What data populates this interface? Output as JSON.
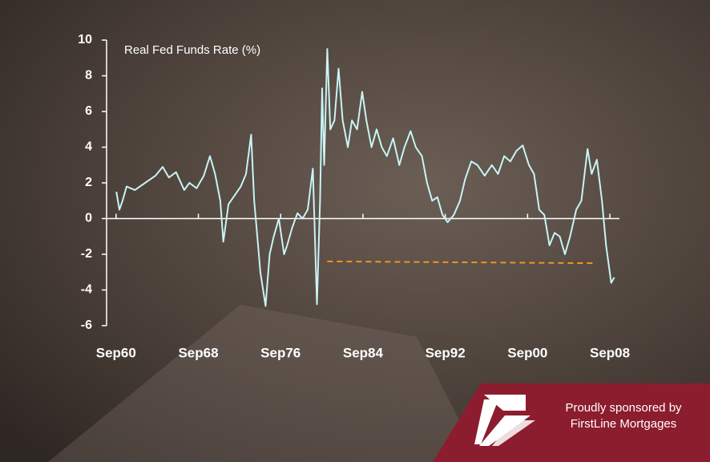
{
  "chart_data": {
    "type": "line",
    "title": "Real Fed Funds Rate (%)",
    "color": "#c8f4f4",
    "x": [
      1960.7,
      1961.0,
      1961.3,
      1961.7,
      1962.5,
      1963.5,
      1964.5,
      1965.2,
      1965.8,
      1966.5,
      1967.3,
      1967.8,
      1968.5,
      1969.2,
      1969.8,
      1970.3,
      1970.8,
      1971.1,
      1971.6,
      1972.2,
      1972.8,
      1973.3,
      1973.8,
      1974.1,
      1974.4,
      1974.7,
      1975.2,
      1975.6,
      1976.0,
      1976.5,
      1977.0,
      1977.3,
      1977.8,
      1978.3,
      1978.8,
      1979.3,
      1979.8,
      1980.2,
      1980.5,
      1980.7,
      1980.9,
      1981.2,
      1981.5,
      1981.9,
      1982.3,
      1982.7,
      1983.2,
      1983.6,
      1984.1,
      1984.6,
      1985.0,
      1985.5,
      1986.0,
      1986.5,
      1987.0,
      1987.6,
      1988.2,
      1988.7,
      1989.3,
      1989.8,
      1990.4,
      1990.9,
      1991.4,
      1991.9,
      1992.4,
      1992.9,
      1993.5,
      1994.1,
      1994.6,
      1995.2,
      1995.8,
      1996.5,
      1997.2,
      1997.8,
      1998.4,
      1999.0,
      1999.6,
      2000.2,
      2000.8,
      2001.3,
      2001.8,
      2002.3,
      2002.8,
      2003.3,
      2003.8,
      2004.3,
      2004.8,
      2005.4,
      2005.9,
      2006.5,
      2006.9,
      2007.4,
      2007.9,
      2008.3,
      2008.8,
      2009.1
    ],
    "values": [
      1.5,
      0.5,
      1.0,
      1.8,
      1.6,
      2.0,
      2.4,
      2.9,
      2.3,
      2.6,
      1.6,
      2.0,
      1.7,
      2.4,
      3.5,
      2.5,
      1.0,
      -1.3,
      0.8,
      1.3,
      1.8,
      2.5,
      4.7,
      1.0,
      -1.0,
      -3.0,
      -4.9,
      -2.0,
      -1.0,
      0.0,
      -2.0,
      -1.5,
      -0.5,
      0.3,
      0.0,
      0.5,
      2.8,
      -4.8,
      1.0,
      7.3,
      3.0,
      9.5,
      5.0,
      5.5,
      8.4,
      5.5,
      4.0,
      5.5,
      5.0,
      7.1,
      5.5,
      4.0,
      5.0,
      4.0,
      3.5,
      4.5,
      3.0,
      4.0,
      4.9,
      4.0,
      3.5,
      2.0,
      1.0,
      1.2,
      0.2,
      -0.2,
      0.2,
      1.0,
      2.2,
      3.2,
      3.0,
      2.4,
      3.0,
      2.5,
      3.5,
      3.2,
      3.8,
      4.1,
      3.0,
      2.5,
      0.5,
      0.2,
      -1.5,
      -0.8,
      -1.0,
      -2.0,
      -1.0,
      0.5,
      1.0,
      3.9,
      2.5,
      3.3,
      1.0,
      -1.5,
      -3.6,
      -3.3
    ],
    "reference_line": {
      "x": [
        1981.2,
        2007.2
      ],
      "values": [
        -2.4,
        -2.5
      ],
      "color": "#f0961e"
    },
    "xlim": [
      1959.75,
      2009.6
    ],
    "ylim": [
      -6,
      10
    ],
    "xticks": [
      {
        "value": 1960.67,
        "label": "Sep60"
      },
      {
        "value": 1968.67,
        "label": "Sep68"
      },
      {
        "value": 1976.67,
        "label": "Sep76"
      },
      {
        "value": 1984.67,
        "label": "Sep84"
      },
      {
        "value": 1992.67,
        "label": "Sep92"
      },
      {
        "value": 2000.67,
        "label": "Sep00"
      },
      {
        "value": 2008.67,
        "label": "Sep08"
      }
    ],
    "yticks": [
      -6,
      -4,
      -2,
      0,
      2,
      4,
      6,
      8,
      10
    ]
  },
  "sponsor": {
    "line1": "Proudly sponsored by",
    "line2": "FirstLine Mortgages"
  }
}
